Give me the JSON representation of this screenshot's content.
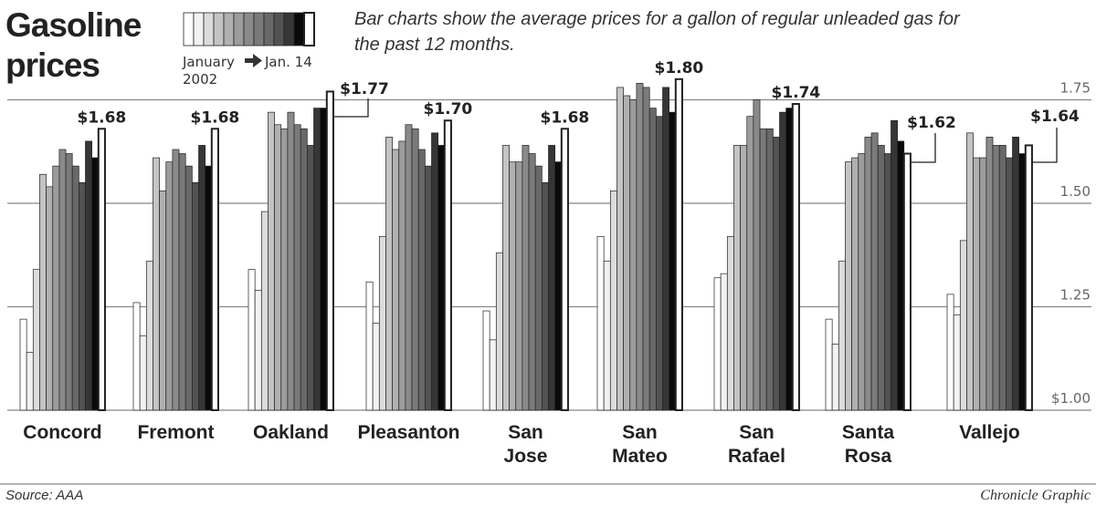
{
  "header": {
    "title_line1": "Gasoline",
    "title_line2": "prices",
    "description_line1": "Bar charts show the average prices for a gallon of regular unleaded gas for",
    "description_line2": "the past 12 months.",
    "legend_start": "January",
    "legend_end": "Jan. 14",
    "legend_year": "2002"
  },
  "footer": {
    "source": "Source: AAA",
    "credit": "Chronicle Graphic"
  },
  "chart_data": {
    "type": "bar",
    "title": "Gasoline prices",
    "ylabel": "",
    "ylim": [
      1.0,
      1.8
    ],
    "yticks": [
      "$1.00",
      "1.25",
      "1.50",
      "1.75"
    ],
    "ytick_values": [
      1.0,
      1.25,
      1.5,
      1.75
    ],
    "grid": true,
    "bar_colors": [
      "#ffffff",
      "#f2f2f2",
      "#dcdcdc",
      "#c4c4c4",
      "#b0b0b0",
      "#9c9c9c",
      "#8a8a8a",
      "#7a7a7a",
      "#686868",
      "#525252",
      "#363636",
      "#0a0a0a",
      "#ffffff"
    ],
    "categories": [
      {
        "name_line1": "Concord",
        "name_line2": "",
        "label": "$1.68",
        "values": [
          1.22,
          1.14,
          1.34,
          1.57,
          1.54,
          1.59,
          1.63,
          1.62,
          1.59,
          1.55,
          1.65,
          1.61,
          1.68
        ]
      },
      {
        "name_line1": "Fremont",
        "name_line2": "",
        "label": "$1.68",
        "values": [
          1.26,
          1.18,
          1.36,
          1.61,
          1.53,
          1.6,
          1.63,
          1.62,
          1.59,
          1.55,
          1.64,
          1.59,
          1.68
        ]
      },
      {
        "name_line1": "Oakland",
        "name_line2": "",
        "label": "$1.77",
        "values": [
          1.34,
          1.29,
          1.48,
          1.72,
          1.69,
          1.68,
          1.72,
          1.69,
          1.68,
          1.64,
          1.73,
          1.73,
          1.77
        ]
      },
      {
        "name_line1": "Pleasanton",
        "name_line2": "",
        "label": "$1.70",
        "values": [
          1.31,
          1.21,
          1.42,
          1.66,
          1.63,
          1.65,
          1.69,
          1.68,
          1.63,
          1.59,
          1.67,
          1.64,
          1.7
        ]
      },
      {
        "name_line1": "San",
        "name_line2": "Jose",
        "label": "$1.68",
        "values": [
          1.24,
          1.17,
          1.38,
          1.64,
          1.6,
          1.6,
          1.64,
          1.62,
          1.59,
          1.55,
          1.64,
          1.6,
          1.68
        ]
      },
      {
        "name_line1": "San",
        "name_line2": "Mateo",
        "label": "$1.80",
        "values": [
          1.42,
          1.36,
          1.53,
          1.78,
          1.76,
          1.75,
          1.79,
          1.78,
          1.73,
          1.71,
          1.78,
          1.72,
          1.8
        ]
      },
      {
        "name_line1": "San",
        "name_line2": "Rafael",
        "label": "$1.74",
        "values": [
          1.32,
          1.33,
          1.42,
          1.64,
          1.64,
          1.71,
          1.75,
          1.68,
          1.68,
          1.66,
          1.72,
          1.73,
          1.74
        ]
      },
      {
        "name_line1": "Santa",
        "name_line2": "Rosa",
        "label": "$1.62",
        "values": [
          1.22,
          1.16,
          1.36,
          1.6,
          1.61,
          1.62,
          1.66,
          1.67,
          1.64,
          1.62,
          1.7,
          1.65,
          1.62
        ]
      },
      {
        "name_line1": "Vallejo",
        "name_line2": "",
        "label": "$1.64",
        "values": [
          1.28,
          1.23,
          1.41,
          1.67,
          1.61,
          1.61,
          1.66,
          1.64,
          1.64,
          1.61,
          1.66,
          1.62,
          1.64
        ]
      }
    ]
  }
}
